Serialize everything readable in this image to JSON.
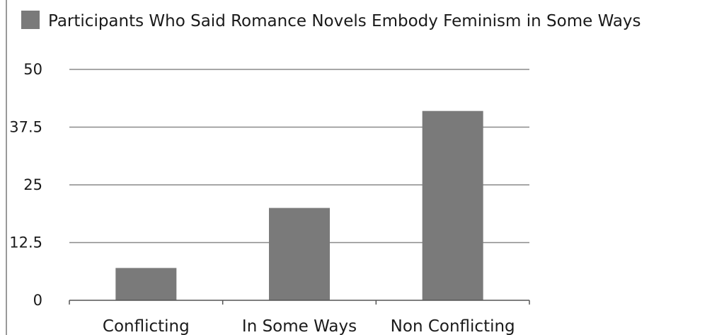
{
  "chart_data": {
    "type": "bar",
    "categories": [
      "Conflicting",
      "In Some Ways",
      "Non Conflicting"
    ],
    "series": [
      {
        "name": "Participants Who Said Romance Novels Embody Feminism in Some Ways",
        "values": [
          7,
          20,
          41
        ]
      }
    ],
    "yticks": [
      "0",
      "12.5",
      "25",
      "37.5",
      "50"
    ],
    "ylim": [
      0,
      50
    ],
    "grid": true,
    "legend": "top",
    "colors": {
      "bar": "#7a7a7a",
      "grid": "#8a8a8a",
      "axis": "#555555"
    }
  }
}
